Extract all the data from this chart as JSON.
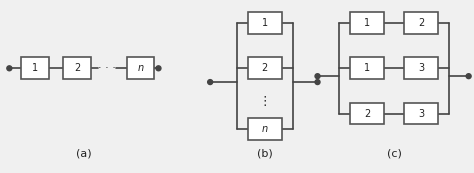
{
  "bg_color": "#f0f0f0",
  "line_color": "#444444",
  "box_color": "#ffffff",
  "box_edge_color": "#555555",
  "text_color": "#222222",
  "label_a": "(a)",
  "label_b": "(b)",
  "label_c": "(c)"
}
